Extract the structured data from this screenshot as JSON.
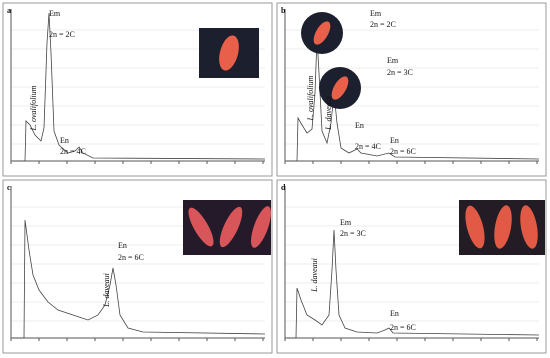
{
  "panels": [
    {
      "letter": "a",
      "annotations": [
        "Em",
        "2n = 2C",
        "En",
        "2n = 4C"
      ],
      "species": [
        "L. ovalifolium"
      ]
    },
    {
      "letter": "b",
      "annotations": [
        "Em",
        "2n = 2C",
        "Em",
        "2n = 3C",
        "En",
        "2n = 4C",
        "En",
        "2n = 6C"
      ],
      "species": [
        "L. ovalifolium",
        "L. daveaui"
      ]
    },
    {
      "letter": "c",
      "annotations": [
        "En",
        "2n = 6C"
      ],
      "species": [
        "L. daveaui"
      ]
    },
    {
      "letter": "d",
      "annotations": [
        "Em",
        "2n = 3C",
        "En",
        "2n = 6C"
      ],
      "species": [
        "L. daveaui"
      ]
    }
  ]
}
